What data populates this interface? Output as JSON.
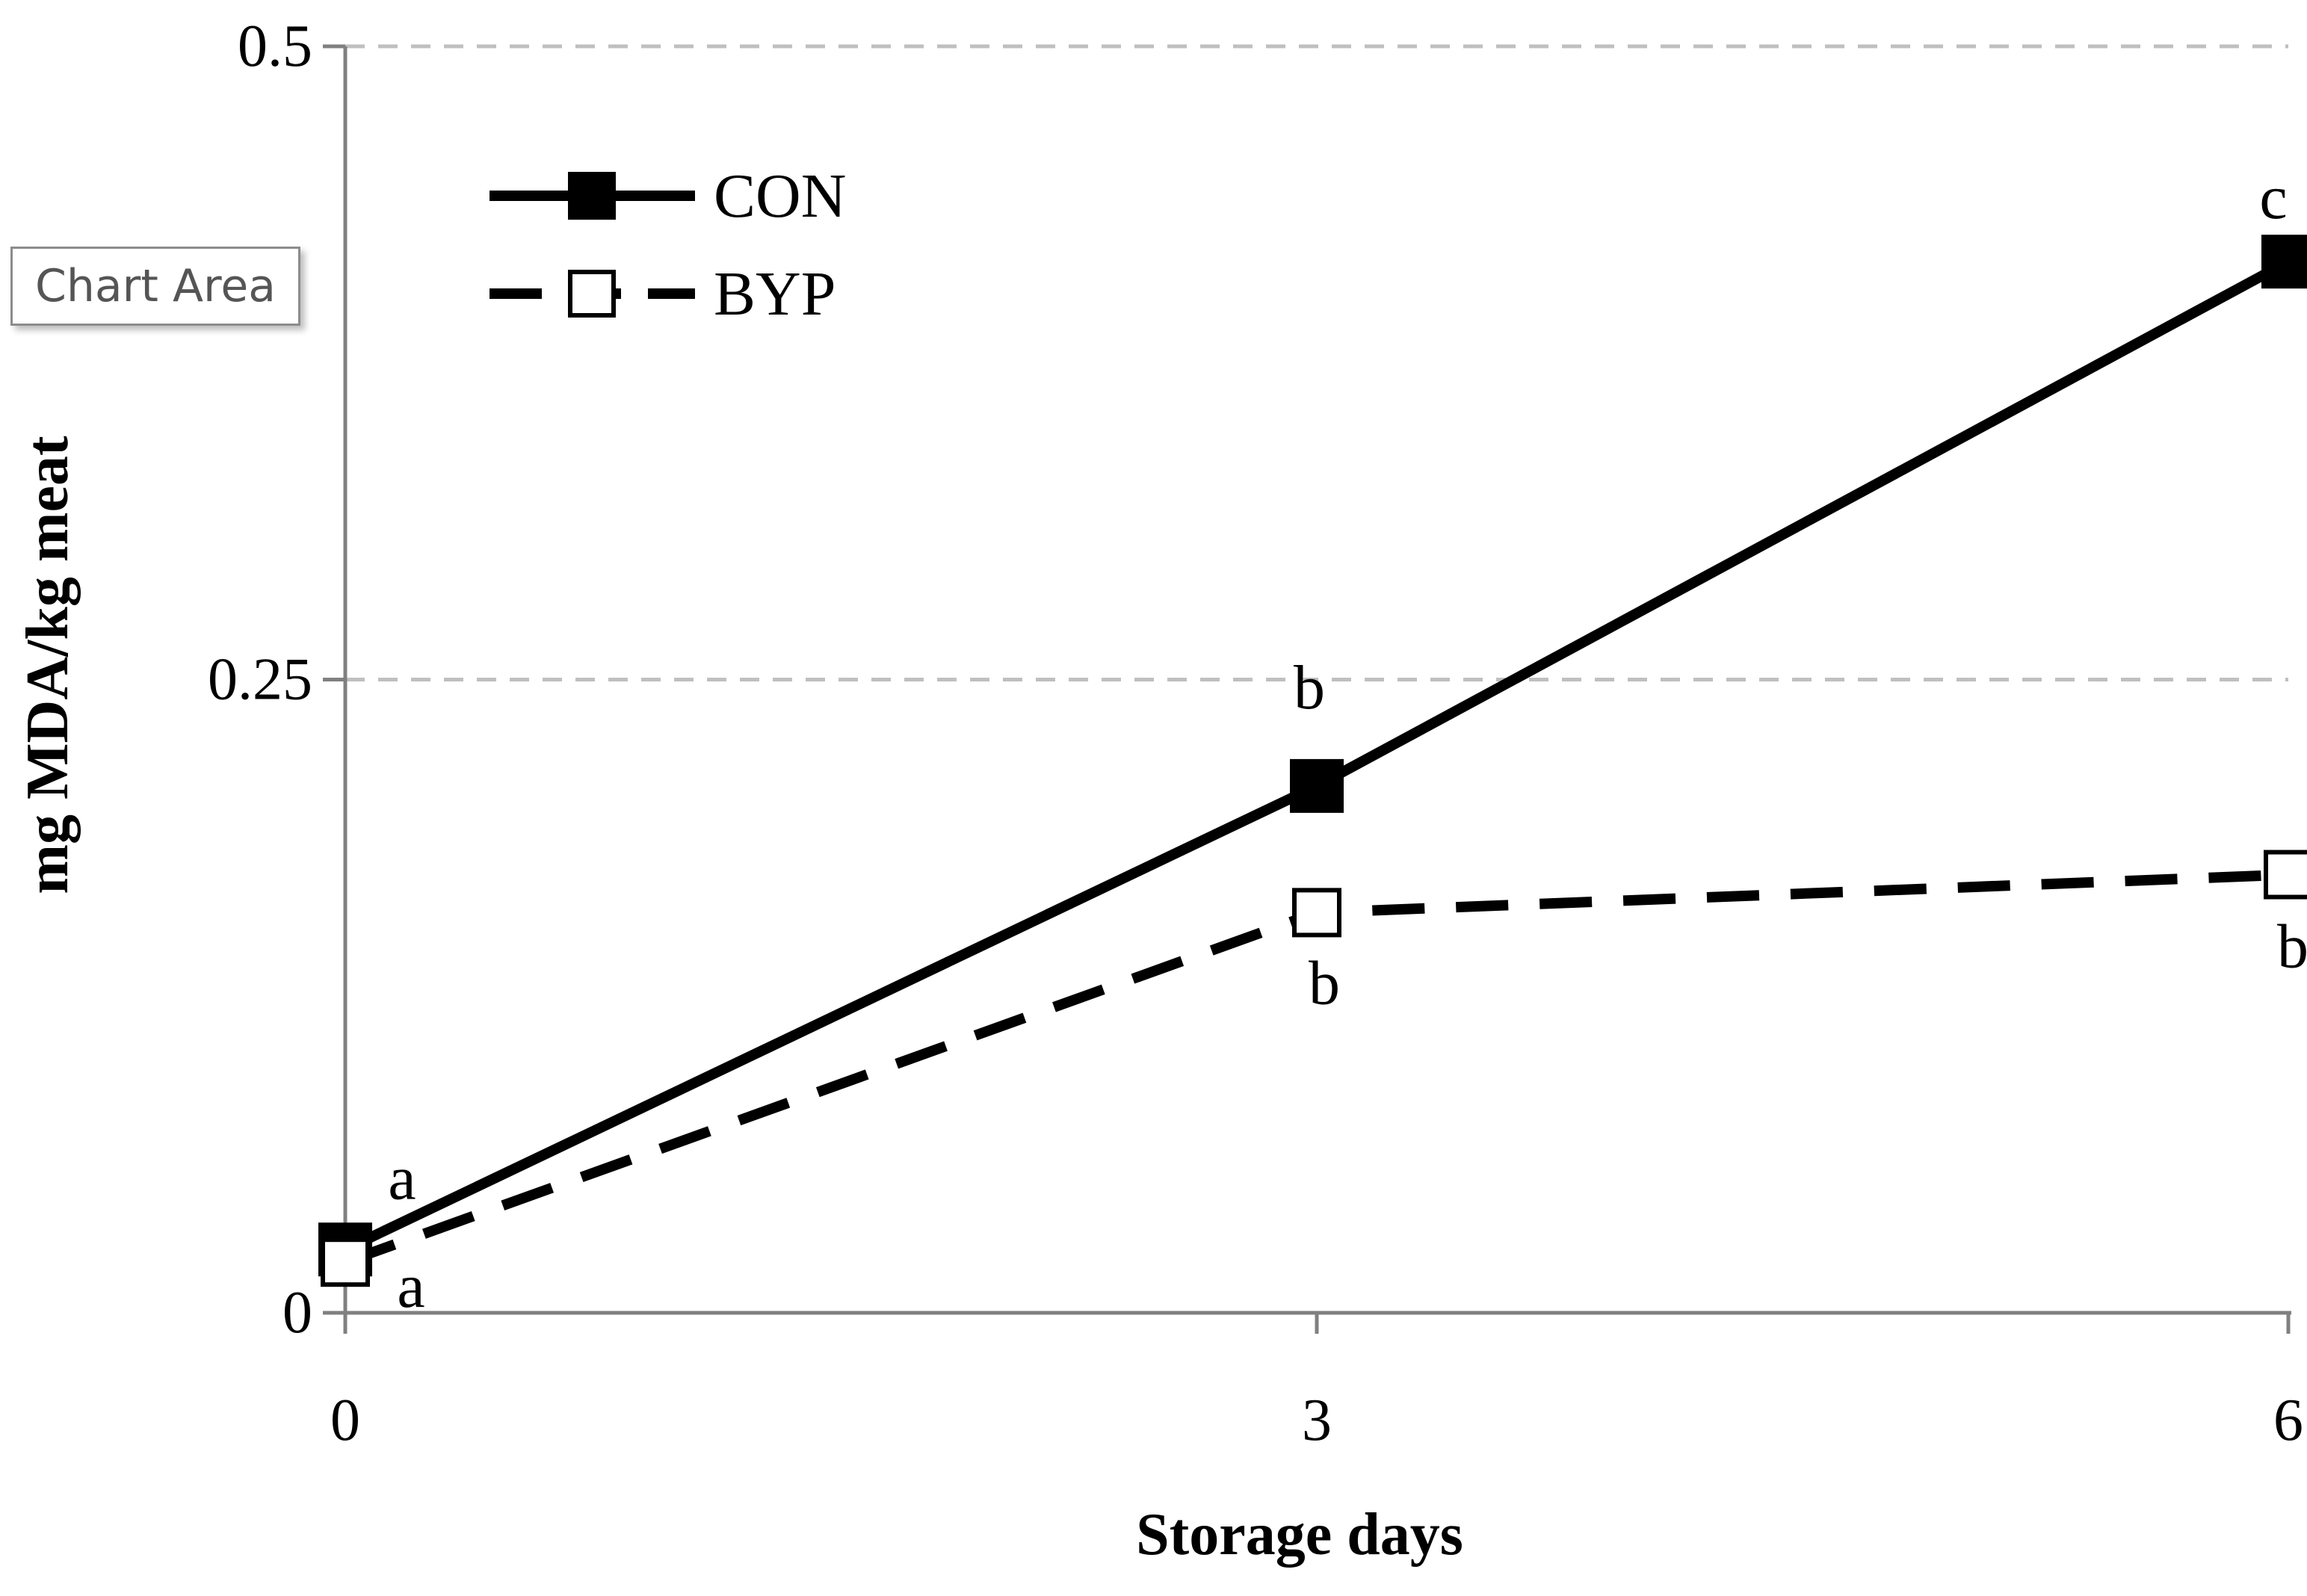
{
  "chart_data": {
    "type": "line",
    "title": "",
    "xlabel": "Storage days",
    "ylabel": "mg MDA/kg meat",
    "x": [
      0,
      3,
      6
    ],
    "x_tick_labels": [
      "0",
      "3",
      "6"
    ],
    "ylim": [
      0,
      0.5
    ],
    "y_tick_labels": [
      "0",
      "0.25",
      "0.5"
    ],
    "y_ticks": [
      0,
      0.25,
      0.5
    ],
    "grid": "horizontal dashed",
    "legend_position": "top-left",
    "series": [
      {
        "name": "CON",
        "values": [
          0.025,
          0.208,
          0.415
        ],
        "labels": [
          "a",
          "b",
          "c"
        ],
        "line_style": "solid",
        "marker": "filled-square",
        "color": "#000000"
      },
      {
        "name": "BYP",
        "values": [
          0.02,
          0.158,
          0.173
        ],
        "labels": [
          "a",
          "b",
          "b"
        ],
        "line_style": "dashed",
        "marker": "open-square",
        "color": "#000000"
      }
    ]
  },
  "tooltip": {
    "text": "Chart Area"
  },
  "colors": {
    "gridline": "#bfbfbf",
    "axis": "#808080",
    "tooltip_border": "#8c8c8c",
    "tooltip_text": "#555555"
  }
}
